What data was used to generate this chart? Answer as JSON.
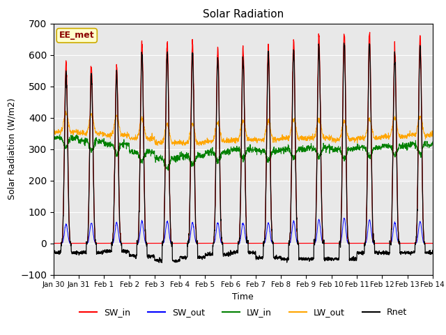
{
  "title": "Solar Radiation",
  "xlabel": "Time",
  "ylabel": "Solar Radiation (W/m2)",
  "ylim": [
    -100,
    700
  ],
  "yticks": [
    -100,
    0,
    100,
    200,
    300,
    400,
    500,
    600,
    700
  ],
  "xtick_labels": [
    "Jan 30",
    "Jan 31",
    "Feb 1",
    "Feb 2",
    "Feb 3",
    "Feb 4",
    "Feb 5",
    "Feb 6",
    "Feb 7",
    "Feb 8",
    "Feb 9",
    "Feb 10",
    "Feb 11",
    "Feb 12",
    "Feb 13",
    "Feb 14"
  ],
  "legend_labels": [
    "SW_in",
    "SW_out",
    "LW_in",
    "LW_out",
    "Rnet"
  ],
  "legend_colors": [
    "red",
    "blue",
    "green",
    "orange",
    "black"
  ],
  "watermark": "EE_met",
  "watermark_color": "#8B0000",
  "watermark_bg": "#FFFFCC",
  "bg_color": "#FFFFFF",
  "plot_bg_color": "#E8E8E8",
  "n_days": 15,
  "points_per_day": 144,
  "sw_in_peaks": [
    570,
    565,
    560,
    635,
    640,
    635,
    620,
    625,
    630,
    640,
    660,
    670,
    670,
    620,
    660
  ],
  "sw_out_peaks": [
    60,
    65,
    65,
    70,
    70,
    65,
    65,
    65,
    65,
    70,
    75,
    80,
    75,
    65,
    70
  ],
  "lw_in_base": [
    335,
    325,
    315,
    290,
    270,
    280,
    290,
    300,
    295,
    300,
    305,
    300,
    305,
    310,
    315
  ],
  "lw_out_base": [
    355,
    350,
    345,
    335,
    320,
    320,
    325,
    330,
    330,
    335,
    335,
    330,
    335,
    340,
    345
  ],
  "rnet_night": [
    -30,
    -30,
    -25,
    -40,
    -55,
    -45,
    -35,
    -30,
    -45,
    -50,
    -50,
    -50,
    -30,
    -30,
    -30
  ]
}
